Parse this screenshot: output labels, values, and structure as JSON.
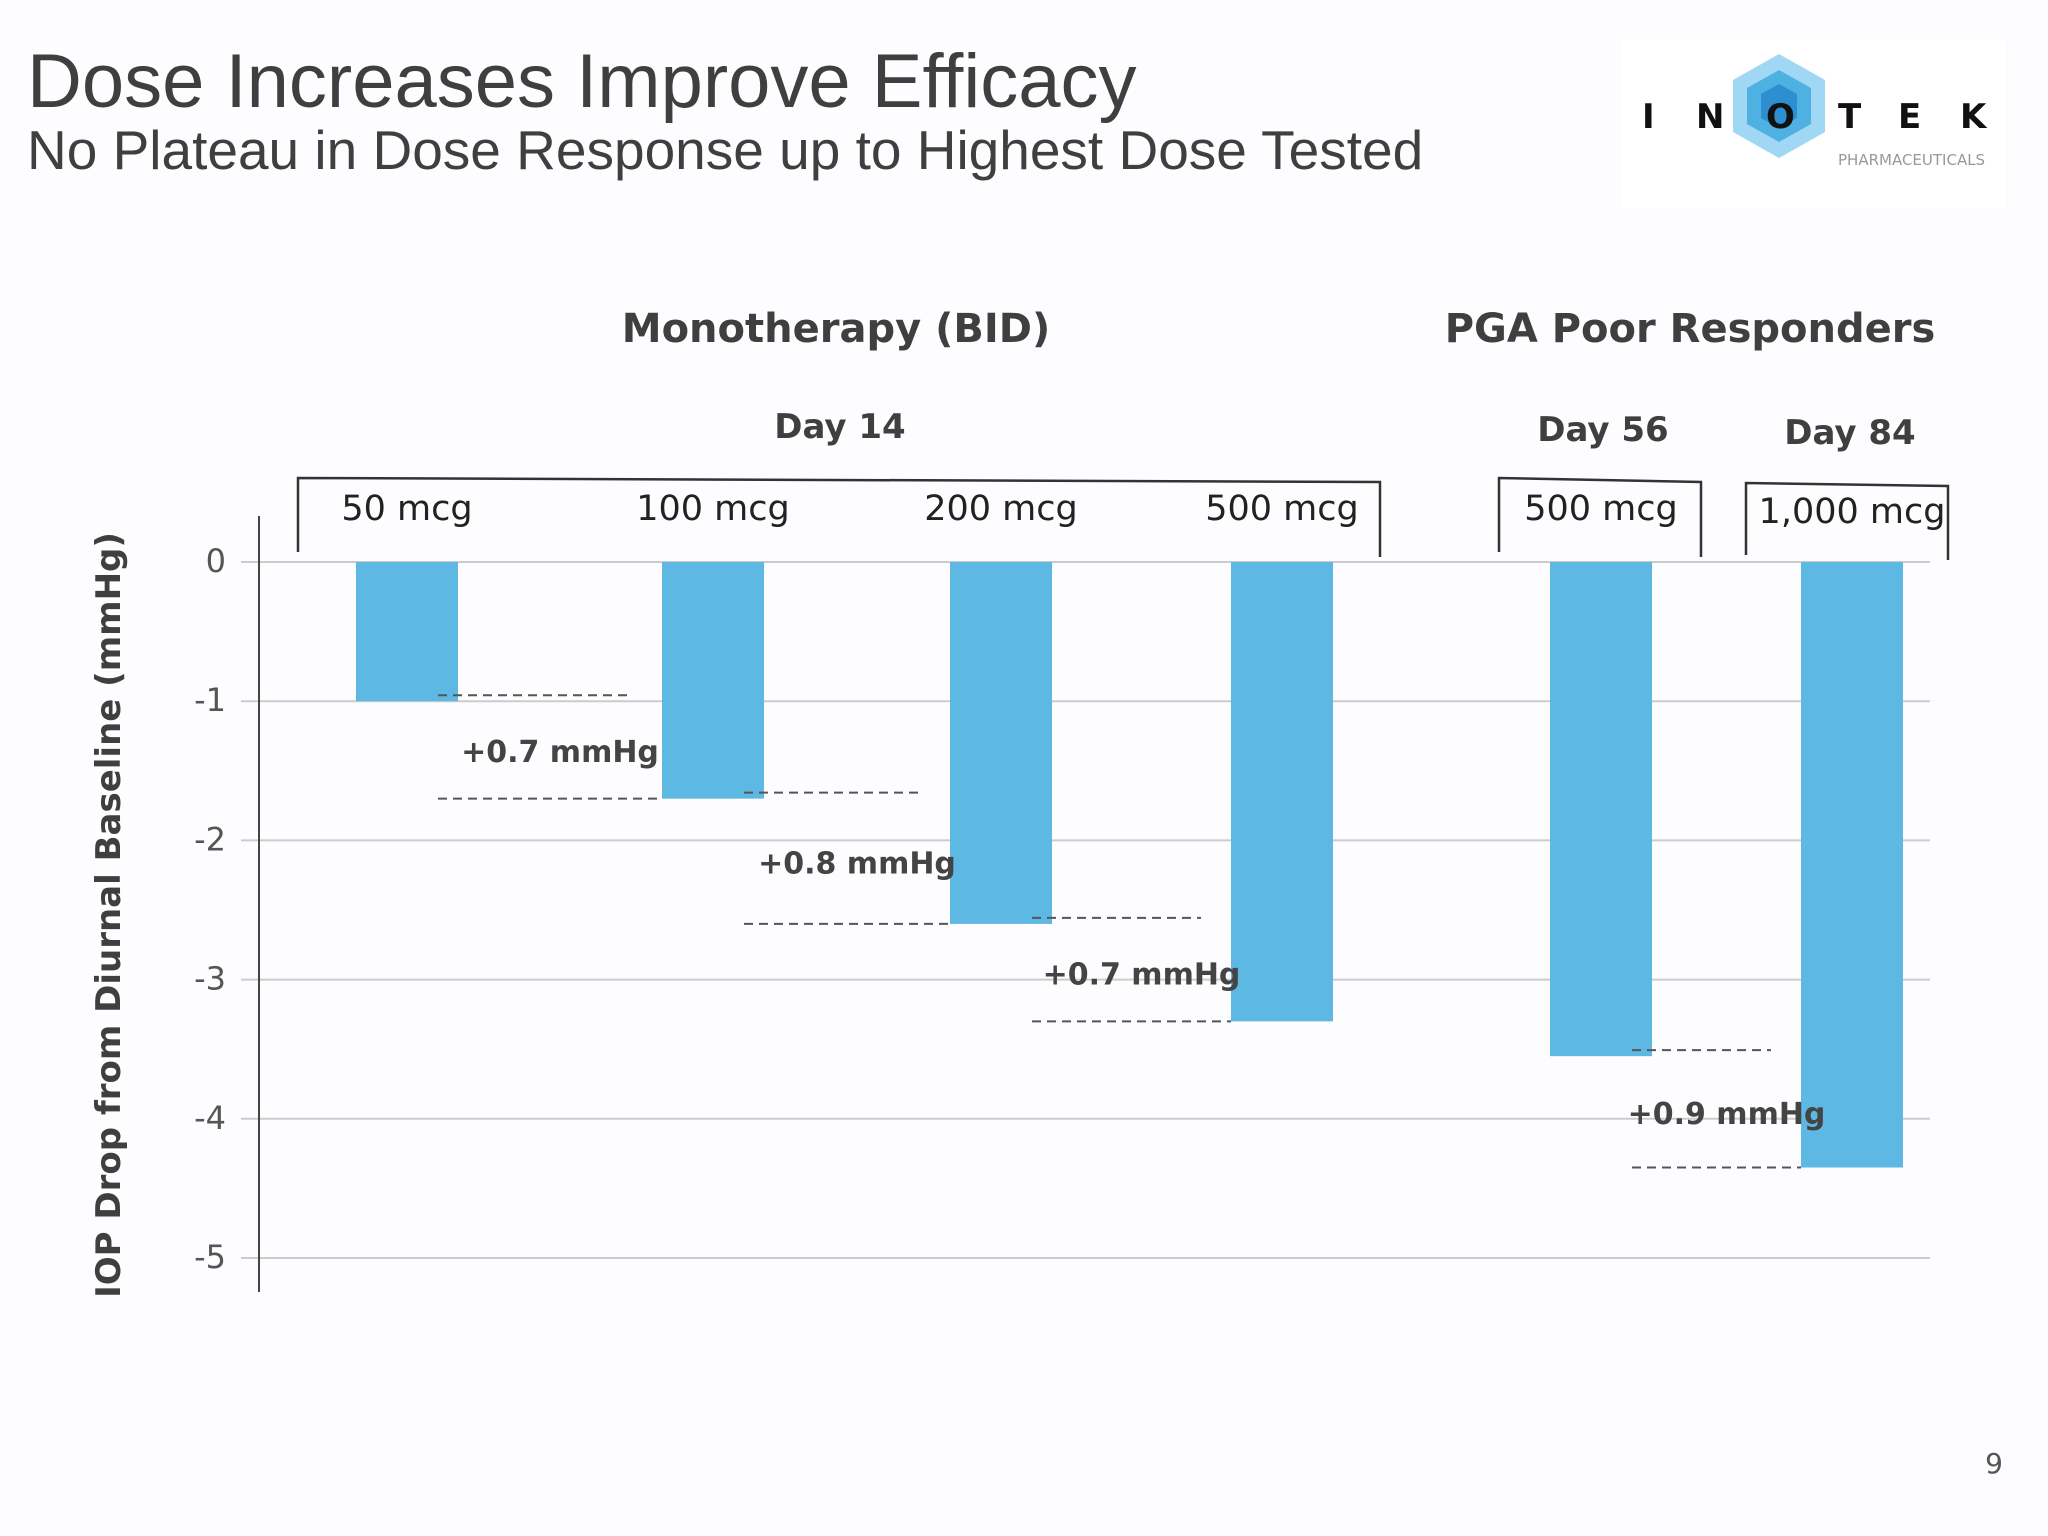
{
  "slide": {
    "title": "Dose Increases Improve Efficacy",
    "subtitle": "No Plateau in Dose Response up to Highest Dose Tested",
    "page_number": "9",
    "logo": {
      "letters": [
        "I",
        "N",
        "O",
        "T",
        "E",
        "K"
      ],
      "tagline": "PHARMACEUTICALS",
      "icon": "hexagon-flower-icon",
      "accent_color": "#5bb8e4"
    }
  },
  "colors": {
    "bar": "#5db9e3",
    "text": "#3f3f3f",
    "grid": "#cccccc"
  },
  "chart_data": {
    "type": "bar",
    "title": "",
    "ylabel": "IOP Drop  from Diurnal Baseline (mmHg)",
    "xlabel": "",
    "ylim": [
      -5,
      0
    ],
    "yticks": [
      0,
      -1,
      -2,
      -3,
      -4,
      -5
    ],
    "grid": true,
    "groups": [
      {
        "label": "Monotherapy (BID)",
        "sublabel": "Day 14"
      },
      {
        "label": "PGA Poor Responders",
        "sublabel": ""
      }
    ],
    "sublabels": [
      "Day 56",
      "Day 84"
    ],
    "categories": [
      "50 mcg",
      "100 mcg",
      "200 mcg",
      "500 mcg",
      "500 mcg",
      "1,000 mcg"
    ],
    "values": [
      -1.0,
      -1.7,
      -2.6,
      -3.3,
      -3.55,
      -4.35
    ],
    "annotations": [
      {
        "between": [
          0,
          1
        ],
        "text": "+0.7 mmHg"
      },
      {
        "between": [
          1,
          2
        ],
        "text": "+0.8 mmHg"
      },
      {
        "between": [
          2,
          3
        ],
        "text": "+0.7 mmHg"
      },
      {
        "between": [
          4,
          5
        ],
        "text": "+0.9 mmHg"
      }
    ]
  }
}
